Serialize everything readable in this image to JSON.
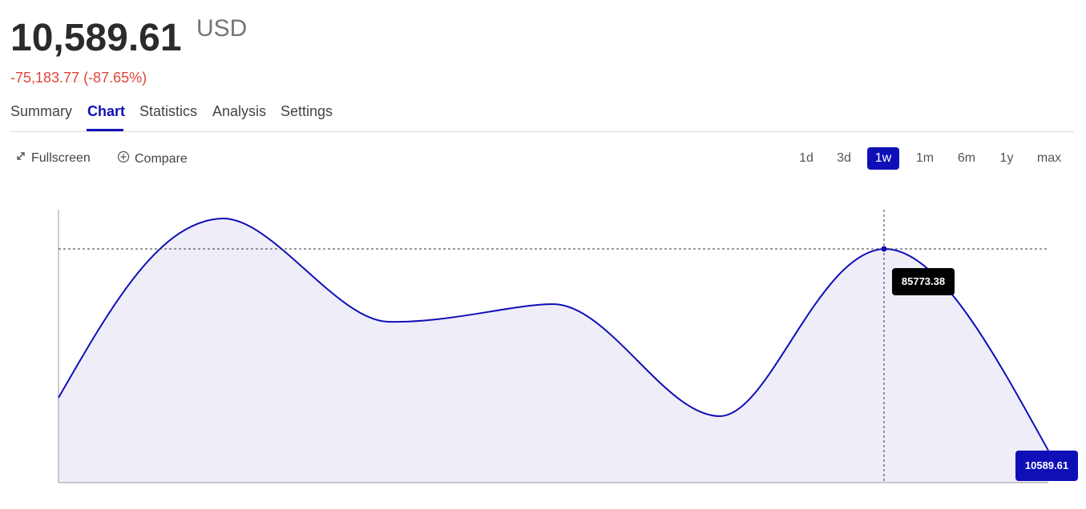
{
  "header": {
    "price": "10,589.61",
    "currency": "USD",
    "change": "-75,183.77 (-87.65%)"
  },
  "tabs": [
    {
      "label": "Summary",
      "active": false
    },
    {
      "label": "Chart",
      "active": true
    },
    {
      "label": "Statistics",
      "active": false
    },
    {
      "label": "Analysis",
      "active": false
    },
    {
      "label": "Settings",
      "active": false
    }
  ],
  "toolbar": {
    "fullscreen_label": "Fullscreen",
    "fullscreen_icon": "expand-icon",
    "compare_label": "Compare",
    "compare_icon": "plus-circle-icon"
  },
  "ranges": [
    {
      "label": "1d",
      "active": false
    },
    {
      "label": "3d",
      "active": false
    },
    {
      "label": "1w",
      "active": true
    },
    {
      "label": "1m",
      "active": false
    },
    {
      "label": "6m",
      "active": false
    },
    {
      "label": "1y",
      "active": false
    },
    {
      "label": "max",
      "active": false
    }
  ],
  "chart": {
    "tooltip_value": "85773.38",
    "last_value": "10589.61"
  },
  "colors": {
    "accent": "#0f0fb8",
    "negative": "#e0453a",
    "area_fill": "#efedf8"
  }
}
